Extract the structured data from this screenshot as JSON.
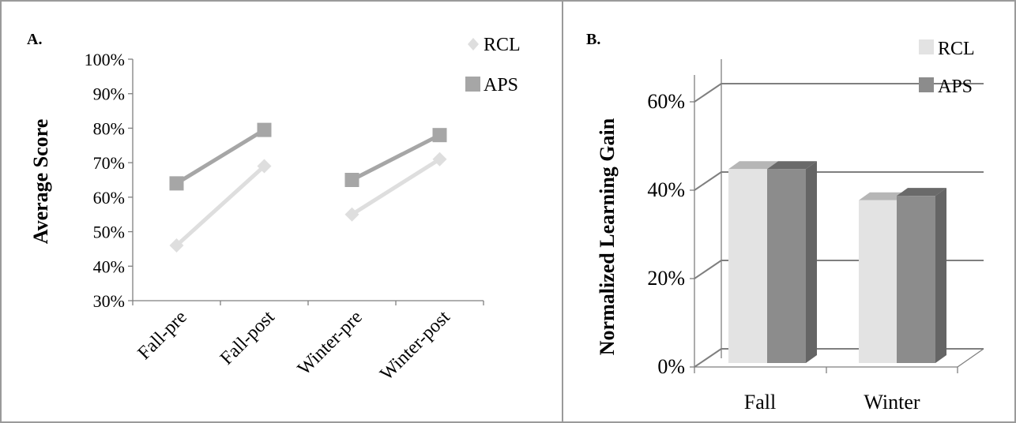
{
  "colors": {
    "rcl": "#dedede",
    "aps": "#a6a6a6",
    "bar_rcl_front": "#e3e3e3",
    "bar_rcl_top": "#b6b6b6",
    "bar_rcl_side": "#c8c8c8",
    "bar_aps_front": "#8c8c8c",
    "bar_aps_top": "#6a6a6a",
    "bar_aps_side": "#656565",
    "axis": "#7f7f7f",
    "border": "#9a9a9a"
  },
  "chart_data": [
    {
      "type": "line",
      "panel_label": "A.",
      "ylabel": "Average Score",
      "xlabel": "",
      "categories": [
        "Fall-pre",
        "Fall-post",
        "Winter-pre",
        "Winter-post"
      ],
      "ylim": [
        0.3,
        1.0
      ],
      "yticks": [
        "30%",
        "40%",
        "50%",
        "60%",
        "70%",
        "80%",
        "90%",
        "100%"
      ],
      "grid": false,
      "legend_position": "top-right",
      "series": [
        {
          "name": "RCL",
          "marker": "diamond",
          "values": [
            0.46,
            0.69,
            0.55,
            0.71
          ]
        },
        {
          "name": "APS",
          "marker": "square",
          "values": [
            0.64,
            0.795,
            0.65,
            0.78
          ]
        }
      ],
      "segments": [
        [
          0,
          1
        ],
        [
          2,
          3
        ]
      ]
    },
    {
      "type": "bar",
      "style": "3d-clustered",
      "panel_label": "B.",
      "ylabel": "Normalized Learning Gain",
      "xlabel": "",
      "categories": [
        "Fall",
        "Winter"
      ],
      "ylim": [
        0,
        0.6
      ],
      "yticks": [
        "0%",
        "20%",
        "40%",
        "60%"
      ],
      "grid": true,
      "legend_position": "top-right",
      "series": [
        {
          "name": "RCL",
          "values": [
            0.435,
            0.365
          ]
        },
        {
          "name": "APS",
          "values": [
            0.435,
            0.375
          ]
        }
      ]
    }
  ]
}
